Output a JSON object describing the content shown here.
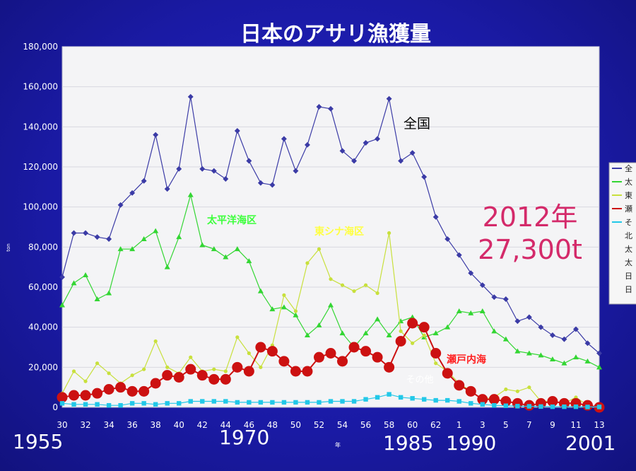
{
  "chart_data": {
    "type": "line",
    "title": "日本のアサリ漁獲量",
    "ylabel": "ton",
    "xlabel": "年",
    "ylim": [
      0,
      180000
    ],
    "y_ticks": [
      "0",
      "20,000",
      "40,000",
      "60,000",
      "80,000",
      "100,000",
      "120,000",
      "140,000",
      "160,000",
      "180,000"
    ],
    "x_tick_labels": [
      "30",
      "32",
      "34",
      "36",
      "38",
      "40",
      "42",
      "44",
      "46",
      "48",
      "50",
      "52",
      "54",
      "56",
      "58",
      "60",
      "62",
      "1",
      "3",
      "5",
      "7",
      "9",
      "11",
      "13"
    ],
    "era_years": [
      "1955",
      "1970",
      "1985",
      "1990",
      "2001"
    ],
    "annotation": {
      "line1": "2012年",
      "line2": "27,300t"
    },
    "legend_letters": [
      "全",
      "太",
      "東",
      "瀬",
      "そ",
      "北",
      "太",
      "太",
      "日",
      "日"
    ],
    "colors": {
      "zenkoku": "#3b3ba6",
      "taiheiyo": "#33d633",
      "higashishina": "#c8e03c",
      "setonaikai": "#cc1111",
      "sonota": "#22c8e8",
      "annotation": "#d42a6a",
      "plot_bg": "#f4f4f6"
    },
    "series": [
      {
        "name": "全国",
        "color": "#3b3ba6",
        "label_color": "#000000",
        "values": [
          65000,
          87000,
          87000,
          85000,
          84000,
          101000,
          107000,
          113000,
          136000,
          109000,
          119000,
          155000,
          119000,
          118000,
          114000,
          138000,
          123000,
          112000,
          111000,
          134000,
          118000,
          131000,
          150000,
          149000,
          128000,
          123000,
          132000,
          134000,
          154000,
          123000,
          127000,
          115000,
          95000,
          84000,
          76000,
          67000,
          61000,
          55000,
          54000,
          43000,
          45000,
          40000,
          36000,
          34000,
          39000,
          32000,
          27000
        ]
      },
      {
        "name": "太平洋海区",
        "color": "#33d633",
        "label_color": "#3cff3c",
        "values": [
          51000,
          62000,
          66000,
          54000,
          57000,
          79000,
          79000,
          84000,
          88000,
          70000,
          85000,
          106000,
          81000,
          79000,
          75000,
          79000,
          73000,
          58000,
          49000,
          50000,
          46000,
          36000,
          41000,
          51000,
          37000,
          30000,
          37000,
          44000,
          36000,
          43000,
          45000,
          35000,
          37000,
          40000,
          48000,
          47000,
          48000,
          38000,
          34000,
          28000,
          27000,
          26000,
          24000,
          22000,
          25000,
          23000,
          20000
        ]
      },
      {
        "name": "東シナ海区",
        "color": "#c8e03c",
        "label_color": "#ffff40",
        "values": [
          7000,
          18000,
          13000,
          22000,
          17000,
          12000,
          16000,
          19000,
          33000,
          20000,
          17000,
          25000,
          18000,
          19000,
          18000,
          35000,
          27000,
          20000,
          31000,
          56000,
          48000,
          72000,
          79000,
          64000,
          61000,
          58000,
          61000,
          57000,
          87000,
          38000,
          32000,
          36000,
          22000,
          18000,
          12000,
          8000,
          4000,
          5000,
          9000,
          8000,
          10000,
          3000,
          3000,
          2000,
          5000,
          1000,
          0
        ]
      },
      {
        "name": "瀬戸内海",
        "color": "#cc1111",
        "label_color": "#ff2020",
        "values": [
          5000,
          6000,
          6000,
          7000,
          9000,
          10000,
          8000,
          8000,
          12000,
          16000,
          15000,
          19000,
          16000,
          14000,
          14000,
          20000,
          18000,
          30000,
          28000,
          23000,
          18000,
          18000,
          25000,
          27000,
          23000,
          30000,
          28000,
          25000,
          20000,
          33000,
          42000,
          40000,
          27000,
          17000,
          11000,
          8000,
          4000,
          4000,
          3000,
          2000,
          1000,
          2000,
          3000,
          2000,
          2000,
          1000,
          0
        ]
      },
      {
        "name": "その他",
        "color": "#22c8e8",
        "label_color": "#ffffff",
        "values": [
          2000,
          1500,
          1500,
          1500,
          1000,
          1000,
          2000,
          2000,
          1500,
          2000,
          2000,
          3000,
          3000,
          3000,
          3000,
          2500,
          2500,
          2500,
          2500,
          2500,
          2500,
          2500,
          2500,
          3000,
          3000,
          3000,
          4000,
          5000,
          6500,
          5000,
          4500,
          4000,
          3500,
          3500,
          3000,
          2000,
          1500,
          1000,
          800,
          600,
          500,
          400,
          300,
          300,
          300,
          200,
          200
        ]
      }
    ]
  }
}
